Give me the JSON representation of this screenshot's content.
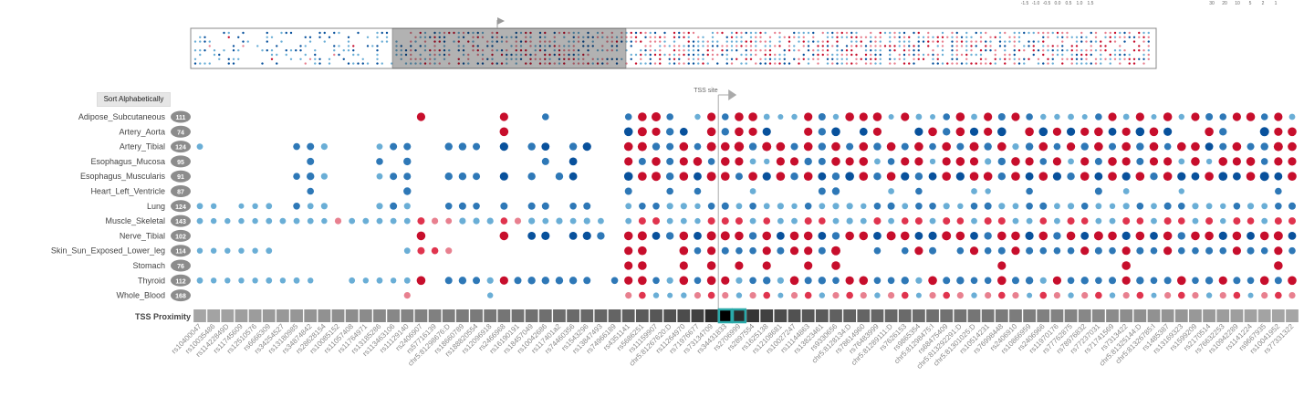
{
  "ui": {
    "sort_button": "Sort Alphabetically",
    "tss_label": "TSS site",
    "tss_proximity_label": "TSS Proximity",
    "legend_color_ticks": [
      "-1.5",
      "-1.0",
      "-0.5",
      "0.0",
      "0.5",
      "1.0",
      "1.5"
    ],
    "legend_size_ticks": [
      "30",
      "20",
      "10",
      "5",
      "2",
      "1"
    ]
  },
  "colors": {
    "neg_dark": "#08519c",
    "neg_mid": "#2e78b7",
    "neg_light": "#6aaed6",
    "pos_light": "#e8808f",
    "pos_mid": "#e0344e",
    "pos_dark": "#c70e2c",
    "tss_highlight": "#2aa9a9",
    "label_badge": "#8c8c8c"
  },
  "chart_data": {
    "type": "scatter",
    "title": "",
    "tss_index": 38,
    "tissues": [
      {
        "name": "Adipose_Subcutaneous",
        "count": 111
      },
      {
        "name": "Artery_Aorta",
        "count": 74
      },
      {
        "name": "Artery_Tibial",
        "count": 124
      },
      {
        "name": "Esophagus_Mucosa",
        "count": 95
      },
      {
        "name": "Esophagus_Muscularis",
        "count": 91
      },
      {
        "name": "Heart_Left_Ventricle",
        "count": 87
      },
      {
        "name": "Lung",
        "count": 124
      },
      {
        "name": "Muscle_Skeletal",
        "count": 143
      },
      {
        "name": "Nerve_Tibial",
        "count": 102
      },
      {
        "name": "Skin_Sun_Exposed_Lower_leg",
        "count": 114
      },
      {
        "name": "Stomach",
        "count": 76
      },
      {
        "name": "Thyroid",
        "count": 112
      },
      {
        "name": "Whole_Blood",
        "count": 168
      }
    ],
    "variants": [
      "rs10400047",
      "rs10035486",
      "rs11422849D",
      "rs11745609",
      "rs12510576",
      "rs6666309",
      "rs34254527",
      "rs13180985",
      "rs34874842",
      "rs28628154",
      "rs10085152",
      "rs11057408",
      "rs11764971",
      "rs13185286",
      "rs113463106",
      "rs11129140",
      "rs2406907",
      "rs57716139",
      "chr5:81298676:D",
      "rs18660789",
      "rs188820554",
      "rs12096918",
      "rs2466968",
      "rs16190191",
      "rs18457049",
      "rs10042686",
      "rs117401a2",
      "rs74460356",
      "rs1543296",
      "rs13847493",
      "rs74966189",
      "rs4351141",
      "rs5686251",
      "rs11159907",
      "chr5:81267620:D",
      "rs11264970",
      "rs71976677",
      "rs73134709",
      "rs34431833",
      "rs2706999",
      "rs2897554",
      "rs1625138",
      "rs12108681",
      "rs10027247",
      "rs11144863",
      "rs13823461",
      "rs9330656",
      "chr5:8128134:D",
      "rs78614960",
      "rs76483999",
      "chr5:81289111:D",
      "rs7626153",
      "rs9865354",
      "chr5:81298475:I",
      "rs68475409",
      "chr5:813292291:D",
      "chr5:81301025:D",
      "rs10514231",
      "rs76998448",
      "rs2406910",
      "rs10866959",
      "rs2406966",
      "rs11970176",
      "rs77762875",
      "rs78976832",
      "rs77237031",
      "rs71741569",
      "rs7313422",
      "chr5:81325144:D",
      "chr5:81326785:I",
      "rs1485387",
      "rs13169323",
      "rs1599209",
      "rs2170514",
      "rs76632253",
      "rs10942289",
      "rs1141224",
      "rs9667935",
      "rs10041952",
      "rs77331322"
    ],
    "tss_proximity": [
      0.48,
      0.5,
      0.52,
      0.54,
      0.56,
      0.58,
      0.6,
      0.62,
      0.64,
      0.66,
      0.68,
      0.7,
      0.72,
      0.74,
      0.76,
      0.78,
      0.8,
      0.82,
      0.84,
      0.86,
      0.88,
      0.9,
      0.92,
      0.94,
      0.96,
      0.98,
      1.0,
      1.02,
      1.04,
      1.06,
      1.08,
      1.12,
      1.16,
      1.2,
      1.25,
      1.3,
      1.4,
      1.6,
      2.0,
      1.6,
      1.5,
      1.4,
      1.3,
      1.25,
      1.2,
      1.16,
      1.12,
      1.1,
      1.08,
      1.06,
      1.04,
      1.02,
      1.0,
      0.98,
      0.96,
      0.94,
      0.92,
      0.9,
      0.88,
      0.86,
      0.84,
      0.82,
      0.8,
      0.78,
      0.76,
      0.74,
      0.72,
      0.7,
      0.68,
      0.66,
      0.64,
      0.62,
      0.6,
      0.58,
      0.56,
      0.54,
      0.52,
      0.5,
      0.49,
      0.48
    ],
    "nes_matrix": [
      [
        null,
        null,
        null,
        null,
        null,
        null,
        null,
        null,
        null,
        null,
        null,
        null,
        null,
        null,
        null,
        null,
        1.2,
        null,
        null,
        null,
        null,
        null,
        1.2,
        null,
        null,
        -0.8,
        null,
        null,
        null,
        null,
        null,
        -0.8,
        1.3,
        1.4,
        -0.8,
        null,
        -0.5,
        1.2,
        -0.8,
        1.3,
        1.3,
        -0.6,
        -0.4,
        -0.5,
        1.2,
        -0.9,
        -0.5,
        1.3,
        1.2,
        1.3,
        -0.4,
        1.2,
        -0.6,
        -0.4,
        -0.8,
        1.3,
        -0.6,
        1.2,
        -0.9,
        1.2,
        -0.8,
        -0.5,
        -0.5,
        -0.6,
        -0.4,
        -0.8,
        1.2,
        -0.6,
        1.2,
        -0.4,
        1.3,
        -0.5,
        1.2,
        -0.9,
        -0.8,
        1.2,
        1.3,
        -0.8,
        1.2,
        -0.6
      ],
      [
        null,
        null,
        null,
        null,
        null,
        null,
        null,
        null,
        null,
        null,
        null,
        null,
        null,
        null,
        null,
        null,
        null,
        null,
        null,
        null,
        null,
        null,
        1.3,
        null,
        null,
        null,
        null,
        null,
        null,
        null,
        null,
        -1.3,
        1.4,
        1.2,
        -1.0,
        -1.1,
        null,
        1.3,
        -1.0,
        1.3,
        1.2,
        -1.2,
        null,
        null,
        1.2,
        -1.0,
        -1.3,
        null,
        -1.1,
        1.2,
        null,
        null,
        -1.2,
        1.3,
        -1.0,
        1.3,
        -1.2,
        1.2,
        -1.3,
        null,
        1.3,
        -1.3,
        1.2,
        -1.2,
        1.2,
        1.3,
        -1.1,
        1.2,
        -1.3,
        1.3,
        -1.2,
        null,
        null,
        1.3,
        -1.0,
        null,
        null,
        -1.4,
        1.2,
        1.3
      ],
      [
        -0.6,
        null,
        null,
        null,
        null,
        null,
        null,
        -0.8,
        -0.9,
        -0.7,
        null,
        null,
        null,
        -0.6,
        -0.9,
        -0.9,
        null,
        null,
        -1.0,
        -1.0,
        -0.9,
        null,
        -1.2,
        null,
        -1.0,
        -1.1,
        null,
        -1.0,
        -1.2,
        null,
        null,
        1.3,
        1.4,
        -1.0,
        -0.9,
        1.3,
        -0.8,
        1.4,
        1.3,
        1.5,
        -1.0,
        1.4,
        1.3,
        -0.9,
        1.3,
        -1.0,
        1.3,
        -0.9,
        1.3,
        -1.0,
        1.3,
        -0.9,
        1.3,
        -0.8,
        1.3,
        -0.9,
        1.4,
        -1.0,
        1.3,
        -0.7,
        -1.0,
        1.3,
        -0.8,
        1.2,
        -1.0,
        1.3,
        -0.9,
        1.3,
        -1.0,
        1.3,
        -0.8,
        1.3,
        1.3,
        -1.1,
        -0.9,
        1.3,
        -0.9,
        -1.0,
        1.4,
        1.3
      ],
      [
        null,
        null,
        null,
        null,
        null,
        null,
        null,
        null,
        -0.9,
        null,
        null,
        null,
        null,
        -0.8,
        null,
        -1.0,
        null,
        null,
        null,
        null,
        null,
        null,
        null,
        null,
        null,
        -0.9,
        null,
        -1.1,
        null,
        null,
        null,
        1.2,
        -0.9,
        1.3,
        -0.9,
        1.2,
        1.3,
        -0.8,
        1.3,
        1.2,
        -0.6,
        -0.5,
        1.2,
        1.2,
        -1.0,
        -0.9,
        1.3,
        1.2,
        1.3,
        -0.6,
        -0.8,
        1.2,
        1.2,
        -0.5,
        1.2,
        1.3,
        1.2,
        -0.7,
        -1.0,
        1.3,
        1.2,
        -0.8,
        1.2,
        -0.6,
        1.2,
        -0.9,
        1.3,
        1.2,
        -0.9,
        1.2,
        1.2,
        -0.6,
        1.3,
        -0.5,
        1.3,
        1.2,
        1.3,
        -0.8,
        1.2,
        1.2
      ],
      [
        null,
        null,
        null,
        null,
        null,
        null,
        null,
        -0.8,
        -1.0,
        -0.7,
        null,
        null,
        null,
        -0.6,
        -0.9,
        -0.9,
        null,
        null,
        -1.0,
        -1.0,
        -0.9,
        null,
        -1.2,
        null,
        -1.0,
        null,
        -1.0,
        -1.1,
        null,
        null,
        null,
        -1.3,
        1.3,
        1.4,
        -1.0,
        1.3,
        -1.1,
        1.4,
        1.3,
        -0.9,
        1.3,
        -1.2,
        1.3,
        -1.0,
        1.3,
        -1.1,
        -1.0,
        -1.3,
        1.3,
        -1.0,
        1.3,
        -1.2,
        -1.0,
        -1.1,
        1.3,
        -1.2,
        1.3,
        1.3,
        -1.0,
        1.3,
        -1.1,
        1.3,
        -1.2,
        -1.0,
        1.3,
        -1.1,
        1.3,
        -1.2,
        1.3,
        -1.0,
        1.3,
        -1.2,
        -1.1,
        1.3,
        -1.3,
        -1.1,
        1.3,
        -1.4,
        -1.1,
        1.3
      ],
      [
        null,
        null,
        null,
        null,
        null,
        null,
        null,
        null,
        -0.8,
        null,
        null,
        null,
        null,
        null,
        null,
        -1.0,
        null,
        null,
        null,
        null,
        null,
        null,
        null,
        null,
        null,
        null,
        null,
        null,
        null,
        null,
        null,
        -0.9,
        null,
        null,
        -0.8,
        null,
        -0.8,
        null,
        null,
        null,
        -0.6,
        null,
        null,
        null,
        null,
        -0.9,
        -1.0,
        null,
        null,
        null,
        -0.6,
        null,
        -0.8,
        null,
        null,
        null,
        -0.6,
        -0.5,
        null,
        null,
        -0.8,
        null,
        null,
        null,
        null,
        -0.9,
        null,
        -0.6,
        null,
        null,
        null,
        -0.5,
        null,
        null,
        null,
        null,
        null,
        null,
        -0.8,
        null
      ],
      [
        -0.6,
        -0.5,
        null,
        -0.4,
        -0.5,
        -0.6,
        null,
        -0.8,
        -0.6,
        -0.7,
        null,
        null,
        null,
        -0.7,
        -0.9,
        -0.7,
        null,
        null,
        -0.8,
        -0.9,
        -0.8,
        null,
        -0.9,
        null,
        -0.9,
        -0.9,
        null,
        -0.8,
        -0.9,
        null,
        null,
        -0.6,
        -0.8,
        -0.8,
        -0.7,
        -0.7,
        -0.5,
        -0.8,
        -0.9,
        -0.6,
        -0.8,
        -0.6,
        -0.7,
        -0.5,
        -0.8,
        -0.6,
        -0.7,
        -0.7,
        -0.5,
        -0.8,
        -0.9,
        -0.6,
        -0.8,
        -0.8,
        -0.7,
        -0.5,
        -0.8,
        -0.9,
        -0.7,
        -0.6,
        -0.8,
        -0.9,
        -0.6,
        -0.7,
        -0.8,
        -0.6,
        -0.5,
        -0.7,
        -0.8,
        -0.6,
        -0.9,
        -0.8,
        -0.7,
        -0.6,
        -0.5,
        -0.8,
        -0.7,
        -0.6,
        -0.8,
        -0.9
      ],
      [
        -0.6,
        -0.5,
        -0.5,
        -0.5,
        -0.5,
        -0.6,
        -0.6,
        -0.6,
        -0.6,
        -0.5,
        0.7,
        -0.6,
        -0.6,
        -0.6,
        -0.6,
        -0.6,
        0.9,
        0.7,
        0.6,
        -0.7,
        -0.7,
        -0.7,
        0.8,
        0.7,
        -0.7,
        -0.6,
        -0.7,
        -0.6,
        -0.7,
        -0.6,
        null,
        -0.6,
        0.9,
        0.9,
        -0.6,
        -0.6,
        -0.5,
        0.9,
        0.9,
        0.9,
        -0.6,
        0.8,
        -0.6,
        -0.6,
        0.9,
        0.8,
        -0.6,
        -0.7,
        -0.6,
        0.9,
        -0.6,
        0.8,
        0.9,
        -0.6,
        0.9,
        0.8,
        -0.6,
        0.9,
        0.9,
        -0.6,
        -0.6,
        0.8,
        -0.6,
        0.9,
        0.8,
        -0.6,
        -0.6,
        0.9,
        0.8,
        -0.6,
        0.9,
        0.8,
        -0.6,
        0.9,
        -0.5,
        0.9,
        0.8,
        -0.6,
        0.9,
        0.9
      ],
      [
        null,
        null,
        null,
        null,
        null,
        null,
        null,
        null,
        null,
        null,
        null,
        null,
        null,
        null,
        null,
        null,
        1.3,
        null,
        null,
        null,
        null,
        null,
        1.3,
        null,
        -1.1,
        -1.2,
        null,
        -1.1,
        -1.2,
        -1.0,
        null,
        1.3,
        1.4,
        -1.1,
        -1.0,
        1.3,
        -1.1,
        1.4,
        1.4,
        1.3,
        -1.0,
        1.3,
        -1.1,
        1.3,
        1.3,
        -1.1,
        -1.0,
        1.3,
        1.3,
        -1.1,
        1.4,
        1.3,
        -1.1,
        -1.2,
        1.4,
        1.3,
        -1.1,
        -1.0,
        1.3,
        1.3,
        -1.2,
        1.3,
        -1.0,
        1.3,
        -1.1,
        1.4,
        1.3,
        -1.2,
        1.3,
        -1.1,
        1.3,
        -1.0,
        1.3,
        1.3,
        -1.2,
        1.3,
        -1.1,
        1.3,
        1.4,
        -1.1
      ],
      [
        -0.5,
        -0.5,
        -0.5,
        -0.5,
        -0.5,
        -0.6,
        null,
        null,
        null,
        null,
        null,
        null,
        null,
        null,
        null,
        -0.6,
        0.9,
        0.8,
        0.7,
        null,
        null,
        null,
        null,
        null,
        null,
        null,
        null,
        null,
        null,
        null,
        null,
        1.2,
        1.3,
        null,
        null,
        1.3,
        -0.8,
        1.2,
        -0.9,
        -0.8,
        -0.8,
        1.2,
        -0.9,
        1.2,
        1.2,
        -0.9,
        1.4,
        null,
        null,
        -0.8,
        null,
        -0.8,
        1.2,
        -0.9,
        null,
        -0.8,
        1.2,
        -0.8,
        -0.9,
        1.2,
        -0.9,
        -0.8,
        -0.8,
        -0.8,
        1.2,
        -0.9,
        -0.8,
        1.2,
        -0.9,
        -0.8,
        1.2,
        -0.8,
        -0.8,
        -0.9,
        -0.8,
        1.2,
        -0.9,
        -0.8,
        1.2,
        -0.8
      ],
      [
        null,
        null,
        null,
        null,
        null,
        null,
        null,
        null,
        null,
        null,
        null,
        null,
        null,
        null,
        null,
        null,
        null,
        null,
        null,
        null,
        null,
        null,
        null,
        null,
        null,
        null,
        null,
        null,
        null,
        null,
        null,
        1.2,
        1.3,
        null,
        null,
        1.2,
        null,
        1.3,
        null,
        1.2,
        null,
        1.2,
        null,
        null,
        1.2,
        null,
        1.3,
        null,
        null,
        null,
        null,
        null,
        null,
        null,
        null,
        null,
        null,
        null,
        1.2,
        null,
        null,
        null,
        null,
        null,
        null,
        null,
        null,
        1.3,
        null,
        null,
        null,
        null,
        null,
        null,
        null,
        null,
        null,
        null,
        1.3,
        null
      ],
      [
        -0.6,
        -0.5,
        -0.5,
        -0.5,
        -0.5,
        -0.6,
        -0.5,
        -0.6,
        -0.5,
        null,
        null,
        -0.6,
        -0.5,
        -0.6,
        -0.5,
        -0.6,
        1.3,
        null,
        -0.9,
        -1.0,
        -0.9,
        -0.7,
        1.2,
        -0.9,
        -1.0,
        -1.0,
        -1.0,
        -1.0,
        -0.9,
        null,
        -0.8,
        1.2,
        1.3,
        -0.8,
        -0.7,
        1.3,
        -0.8,
        1.3,
        1.2,
        -0.7,
        -0.8,
        -1.0,
        -0.7,
        1.3,
        -0.9,
        -1.0,
        -0.8,
        1.2,
        1.3,
        -0.8,
        -0.8,
        -1.0,
        -0.7,
        1.3,
        -0.9,
        -1.0,
        -0.8,
        -0.8,
        1.3,
        -0.9,
        -1.0,
        -0.7,
        1.2,
        -0.8,
        -1.0,
        -0.8,
        -0.9,
        1.2,
        -1.0,
        -0.8,
        -0.9,
        1.3,
        -0.8,
        -1.0,
        1.2,
        -0.9,
        -0.8,
        1.3,
        -0.9,
        1.3
      ],
      [
        null,
        null,
        null,
        null,
        null,
        null,
        null,
        null,
        null,
        null,
        null,
        null,
        null,
        null,
        null,
        0.7,
        null,
        null,
        null,
        null,
        null,
        -0.5,
        null,
        null,
        null,
        null,
        null,
        null,
        null,
        null,
        null,
        0.7,
        0.8,
        -0.5,
        -0.4,
        -0.5,
        0.7,
        0.8,
        0.7,
        -0.5,
        0.7,
        0.8,
        -0.4,
        0.7,
        0.8,
        -0.5,
        0.7,
        0.8,
        0.7,
        -0.5,
        0.7,
        0.8,
        -0.4,
        0.7,
        0.8,
        0.7,
        -0.5,
        0.7,
        0.8,
        0.7,
        -0.4,
        0.8,
        0.7,
        -0.5,
        0.7,
        0.8,
        -0.5,
        0.7,
        0.8,
        -0.4,
        0.7,
        0.8,
        0.7,
        -0.5,
        0.7,
        0.8,
        -0.4,
        0.7,
        0.8,
        0.7
      ]
    ]
  }
}
